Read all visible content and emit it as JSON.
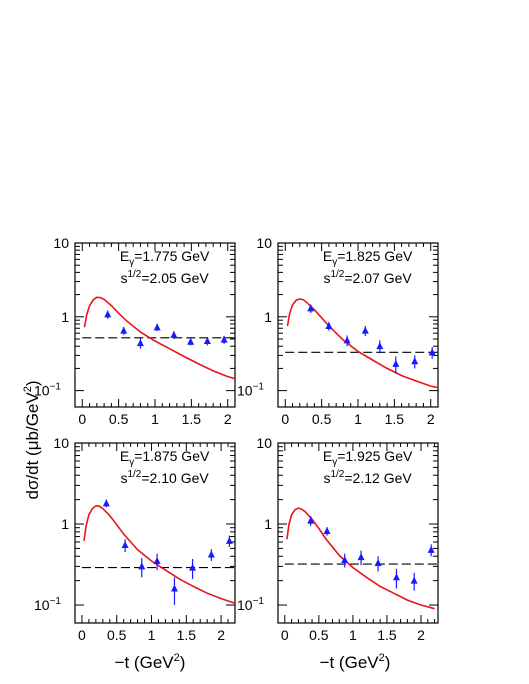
{
  "figure": {
    "ylabel_parts": {
      "main": "dσ/dt  (μb/GeV",
      "sup": "2",
      "close": ")"
    },
    "xlabel_parts": {
      "main": "−t  (GeV",
      "sup": "2",
      "close": ")"
    }
  },
  "chart_data": [
    {
      "type": "scatter",
      "title": "",
      "annotation": {
        "eg_prefix": "E",
        "eg_sub": "γ",
        "eg_value": "=1.775 GeV",
        "s_prefix": "s",
        "s_sup": "1/2",
        "s_value": "=2.05 GeV"
      },
      "xlim": [
        -0.1,
        2.1
      ],
      "ylim": [
        0.06,
        10
      ],
      "yscale": "log",
      "x_ticks": [
        "0",
        "0.5",
        "1",
        "1.5",
        "2"
      ],
      "y_ticks": [
        {
          "label": "10",
          "sup": ""
        },
        {
          "label": "1",
          "sup": ""
        },
        {
          "label": "10",
          "sup": "−1"
        }
      ],
      "series": [
        {
          "x": [
            0.35,
            0.57,
            0.8,
            1.03,
            1.26,
            1.49,
            1.72,
            1.95
          ],
          "y": [
            1.08,
            0.65,
            0.44,
            0.72,
            0.57,
            0.46,
            0.47,
            0.49
          ],
          "yerr": [
            0.14,
            0.08,
            0.07,
            0.08,
            0.07,
            0.05,
            0.06,
            0.06
          ]
        }
      ],
      "curve": {
        "x": [
          0.03,
          0.06,
          0.1,
          0.15,
          0.2,
          0.25,
          0.3,
          0.4,
          0.5,
          0.6,
          0.8,
          1.0,
          1.2,
          1.4,
          1.6,
          1.8,
          2.0,
          2.1
        ],
        "y": [
          0.72,
          1.05,
          1.4,
          1.7,
          1.84,
          1.82,
          1.72,
          1.42,
          1.12,
          0.9,
          0.62,
          0.47,
          0.37,
          0.29,
          0.23,
          0.185,
          0.155,
          0.145
        ]
      },
      "baseline": 0.52
    },
    {
      "type": "scatter",
      "title": "",
      "annotation": {
        "eg_prefix": "E",
        "eg_sub": "γ",
        "eg_value": "=1.825 GeV",
        "s_prefix": "s",
        "s_sup": "1/2",
        "s_value": "=2.07 GeV"
      },
      "xlim": [
        -0.1,
        2.1
      ],
      "ylim": [
        0.06,
        10
      ],
      "yscale": "log",
      "x_ticks": [
        "0",
        "0.5",
        "1",
        "1.5",
        "2"
      ],
      "y_ticks": [
        {
          "label": "10",
          "sup": ""
        },
        {
          "label": "1",
          "sup": ""
        },
        {
          "label": "10",
          "sup": "−1"
        }
      ],
      "series": [
        {
          "x": [
            0.35,
            0.6,
            0.85,
            1.1,
            1.3,
            1.52,
            1.78,
            2.02
          ],
          "y": [
            1.3,
            0.75,
            0.48,
            0.65,
            0.4,
            0.23,
            0.25,
            0.33
          ],
          "yerr": [
            0.17,
            0.1,
            0.08,
            0.1,
            0.08,
            0.06,
            0.05,
            0.06
          ]
        }
      ],
      "curve": {
        "x": [
          0.03,
          0.06,
          0.1,
          0.15,
          0.2,
          0.25,
          0.3,
          0.4,
          0.5,
          0.6,
          0.8,
          1.0,
          1.2,
          1.4,
          1.6,
          1.8,
          2.0,
          2.1
        ],
        "y": [
          0.75,
          1.1,
          1.45,
          1.68,
          1.75,
          1.7,
          1.55,
          1.25,
          0.97,
          0.75,
          0.48,
          0.34,
          0.26,
          0.2,
          0.16,
          0.135,
          0.115,
          0.11
        ]
      },
      "baseline": 0.33
    },
    {
      "type": "scatter",
      "title": "",
      "annotation": {
        "eg_prefix": "E",
        "eg_sub": "γ",
        "eg_value": "=1.875 GeV",
        "s_prefix": "s",
        "s_sup": "1/2",
        "s_value": "=2.10 GeV"
      },
      "xlim": [
        -0.1,
        2.2
      ],
      "ylim": [
        0.06,
        10
      ],
      "yscale": "log",
      "x_ticks": [
        "0",
        "0.5",
        "1",
        "1.5",
        "2"
      ],
      "y_ticks": [
        {
          "label": "10",
          "sup": ""
        },
        {
          "label": "1",
          "sup": ""
        },
        {
          "label": "10",
          "sup": "−1"
        }
      ],
      "series": [
        {
          "x": [
            0.35,
            0.62,
            0.86,
            1.08,
            1.33,
            1.59,
            1.86,
            2.12
          ],
          "y": [
            1.8,
            0.55,
            0.3,
            0.35,
            0.16,
            0.29,
            0.42,
            0.62
          ],
          "yerr": [
            0.2,
            0.1,
            0.08,
            0.08,
            0.06,
            0.08,
            0.07,
            0.1
          ]
        }
      ],
      "curve": {
        "x": [
          0.03,
          0.06,
          0.1,
          0.15,
          0.2,
          0.25,
          0.3,
          0.4,
          0.5,
          0.6,
          0.8,
          1.0,
          1.2,
          1.4,
          1.6,
          1.8,
          2.0,
          2.2
        ],
        "y": [
          0.62,
          0.95,
          1.3,
          1.55,
          1.68,
          1.66,
          1.55,
          1.27,
          0.98,
          0.75,
          0.48,
          0.35,
          0.27,
          0.21,
          0.17,
          0.14,
          0.12,
          0.105
        ]
      },
      "baseline": 0.29
    },
    {
      "type": "scatter",
      "title": "",
      "annotation": {
        "eg_prefix": "E",
        "eg_sub": "γ",
        "eg_value": "=1.925 GeV",
        "s_prefix": "s",
        "s_sup": "1/2",
        "s_value": "=2.12 GeV"
      },
      "xlim": [
        -0.1,
        2.25
      ],
      "ylim": [
        0.06,
        10
      ],
      "yscale": "log",
      "x_ticks": [
        "0",
        "0.5",
        "1",
        "1.5",
        "2"
      ],
      "y_ticks": [
        {
          "label": "10",
          "sup": ""
        },
        {
          "label": "1",
          "sup": ""
        },
        {
          "label": "10",
          "sup": "−1"
        }
      ],
      "series": [
        {
          "x": [
            0.38,
            0.62,
            0.88,
            1.12,
            1.37,
            1.64,
            1.9,
            2.15
          ],
          "y": [
            1.1,
            0.82,
            0.36,
            0.39,
            0.33,
            0.22,
            0.2,
            0.48
          ],
          "yerr": [
            0.15,
            0.1,
            0.07,
            0.08,
            0.07,
            0.06,
            0.05,
            0.08
          ]
        }
      ],
      "curve": {
        "x": [
          0.03,
          0.06,
          0.1,
          0.15,
          0.2,
          0.25,
          0.3,
          0.4,
          0.5,
          0.6,
          0.8,
          1.0,
          1.2,
          1.4,
          1.6,
          1.8,
          2.0,
          2.2
        ],
        "y": [
          0.65,
          0.98,
          1.3,
          1.5,
          1.57,
          1.52,
          1.42,
          1.15,
          0.88,
          0.66,
          0.41,
          0.29,
          0.22,
          0.17,
          0.14,
          0.115,
          0.1,
          0.09
        ]
      },
      "baseline": 0.32
    }
  ]
}
